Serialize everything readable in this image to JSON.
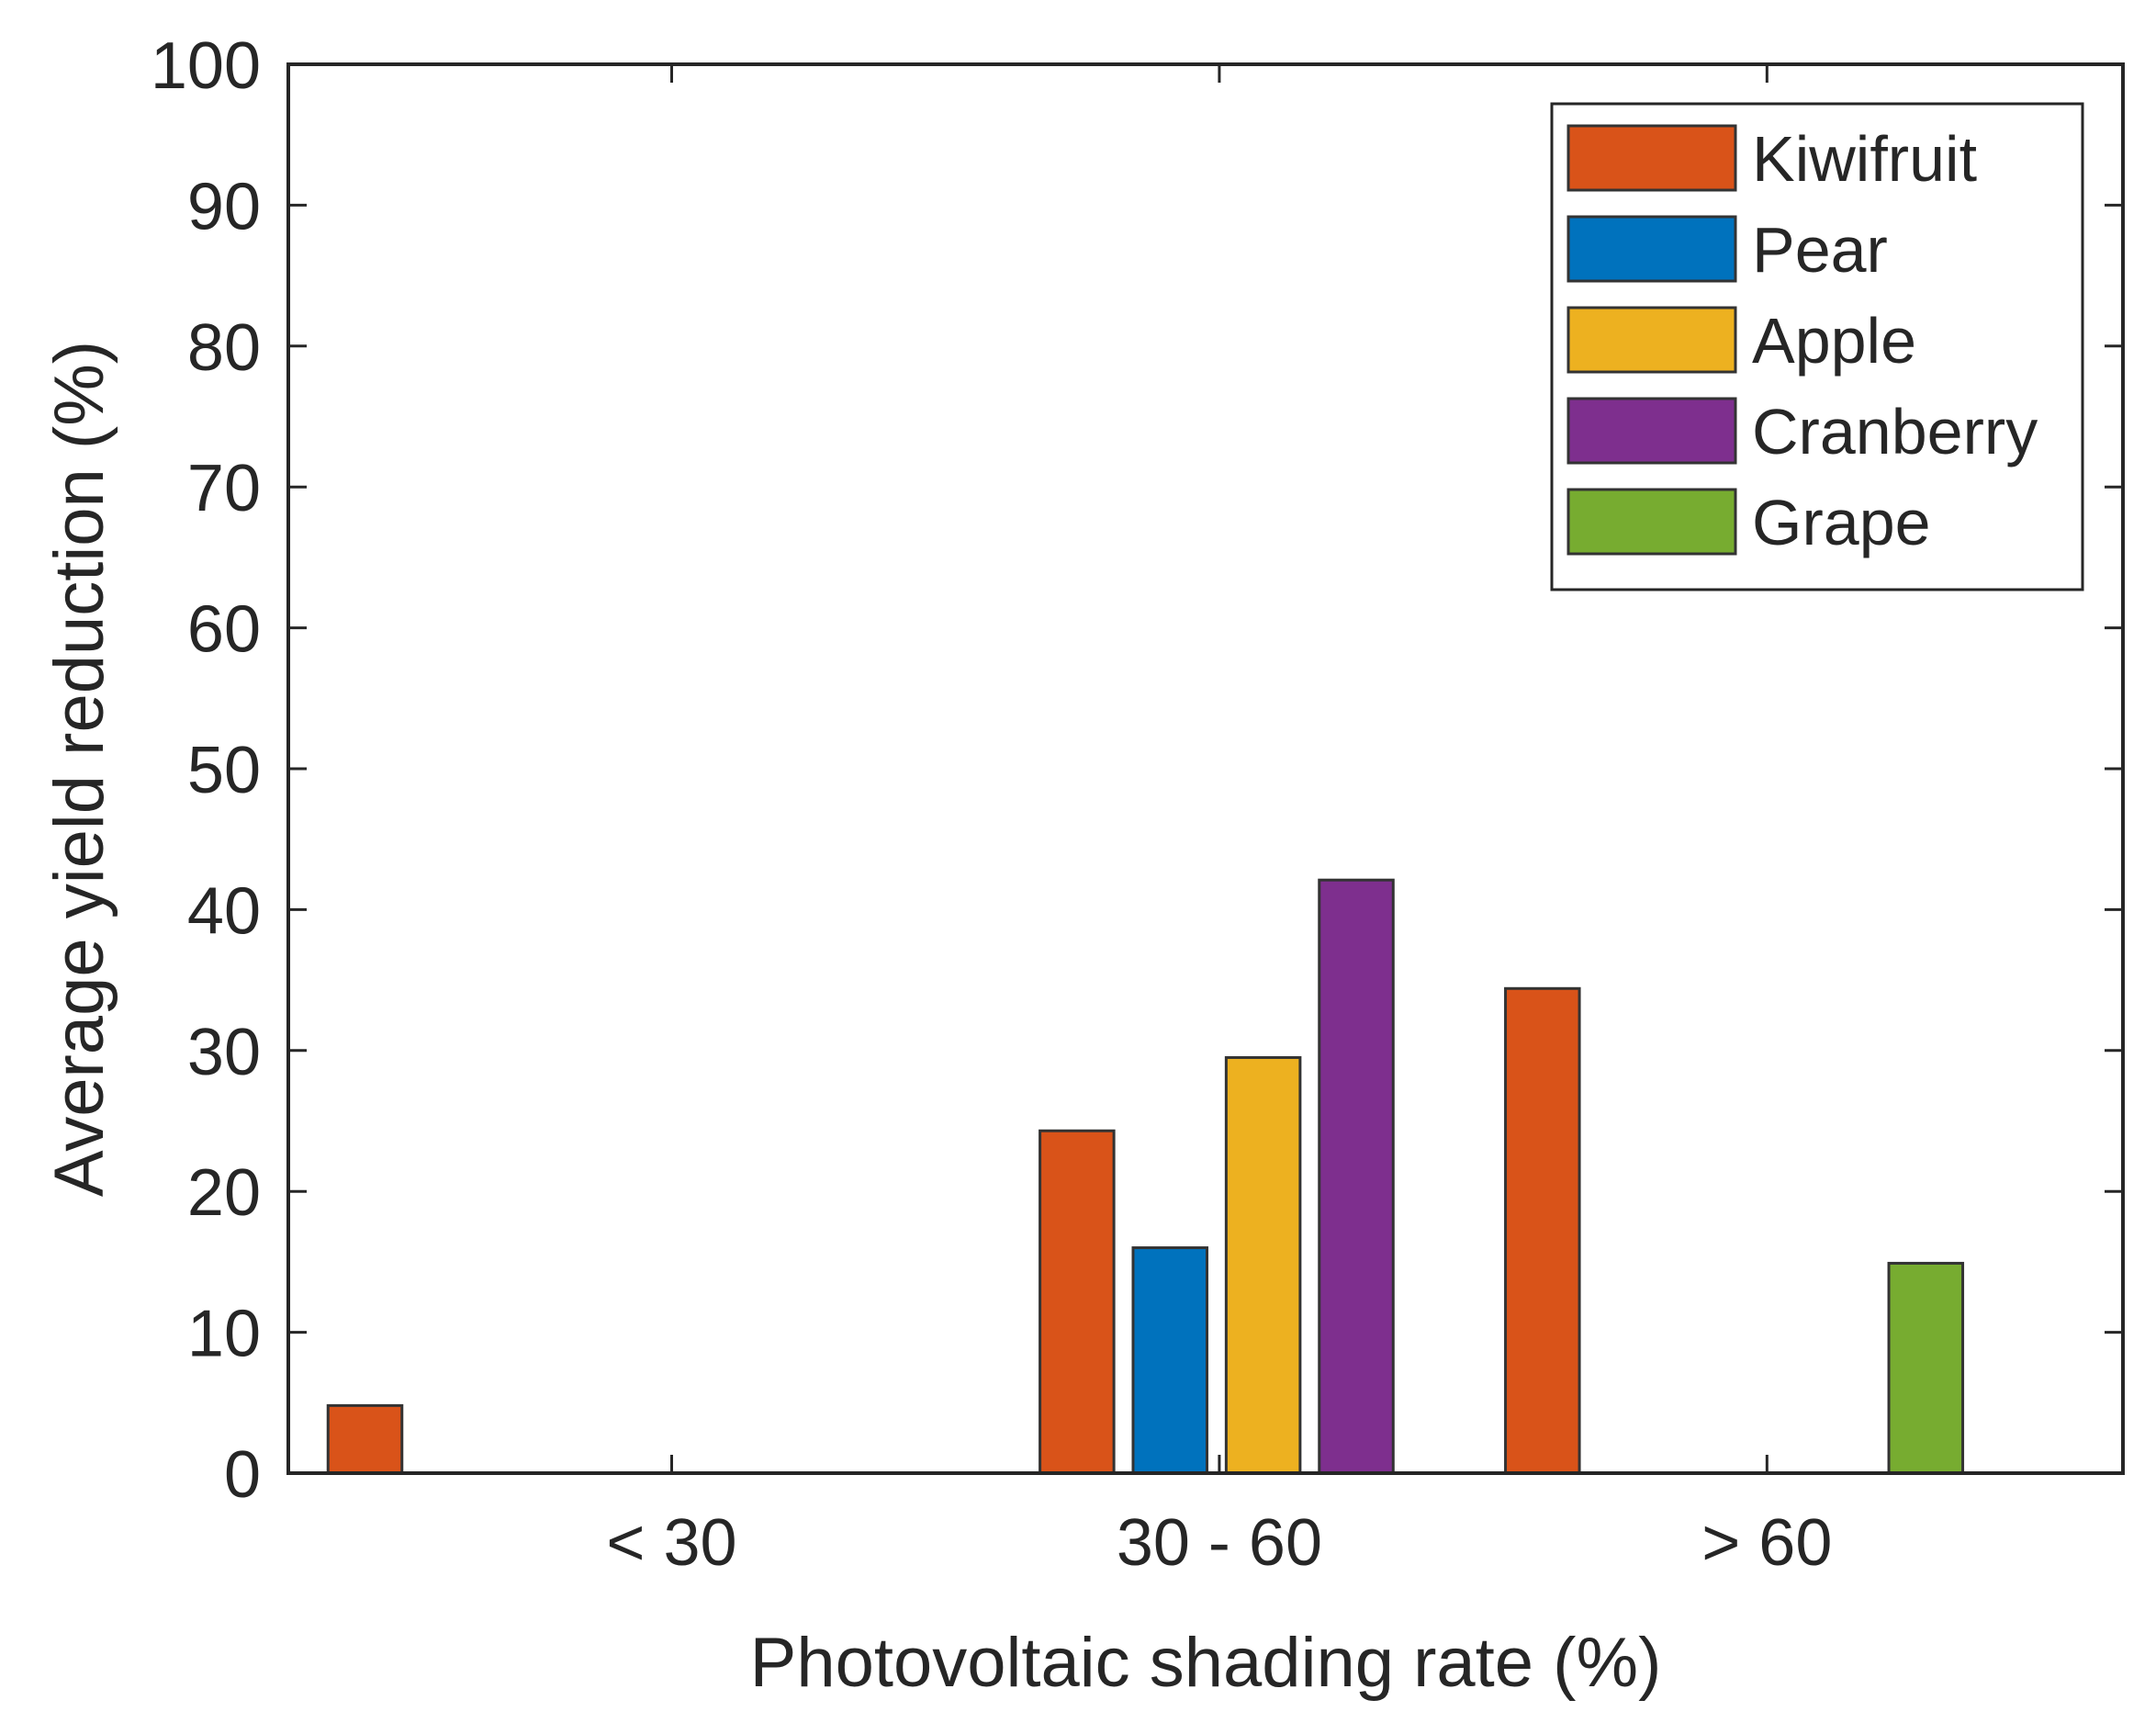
{
  "chart_data": {
    "type": "bar",
    "title": "",
    "xlabel": "Photovoltaic shading rate (%)",
    "ylabel": "Average yield reduction (%)",
    "ylim": [
      0,
      100
    ],
    "yticks": [
      0,
      10,
      20,
      30,
      40,
      50,
      60,
      70,
      80,
      90,
      100
    ],
    "ytick_labels": [
      "0",
      "10",
      "20",
      "30",
      "40",
      "50",
      "60",
      "70",
      "80",
      "90",
      "100"
    ],
    "categories": [
      "< 30",
      "30 - 60",
      "> 60"
    ],
    "grid": false,
    "legend_position": "top-right",
    "legend": [
      {
        "name": "Kiwifruit",
        "color": "#d95319"
      },
      {
        "name": "Pear",
        "color": "#0072bd"
      },
      {
        "name": "Apple",
        "color": "#edb120"
      },
      {
        "name": "Cranberry",
        "color": "#7e2f8e"
      },
      {
        "name": "Grape",
        "color": "#77ac30"
      }
    ],
    "bars": [
      {
        "series": "Kiwifruit",
        "category": "< 30",
        "x": 0.44,
        "value": 4.8
      },
      {
        "series": "Kiwifruit",
        "category": "30 - 60",
        "x": 1.74,
        "value": 24.3
      },
      {
        "series": "Pear",
        "category": "30 - 60",
        "x": 1.91,
        "value": 16.0
      },
      {
        "series": "Apple",
        "category": "30 - 60",
        "x": 2.08,
        "value": 29.5
      },
      {
        "series": "Cranberry",
        "category": "30 - 60",
        "x": 2.25,
        "value": 42.1
      },
      {
        "series": "Kiwifruit",
        "category": "30 - 60",
        "x": 2.59,
        "value": 34.4
      },
      {
        "series": "Grape",
        "category": "> 60",
        "x": 3.29,
        "value": 14.9
      }
    ],
    "bar_width": 0.135,
    "xlim": [
      0.3,
      3.65
    ],
    "category_positions": [
      1,
      2,
      3
    ]
  }
}
